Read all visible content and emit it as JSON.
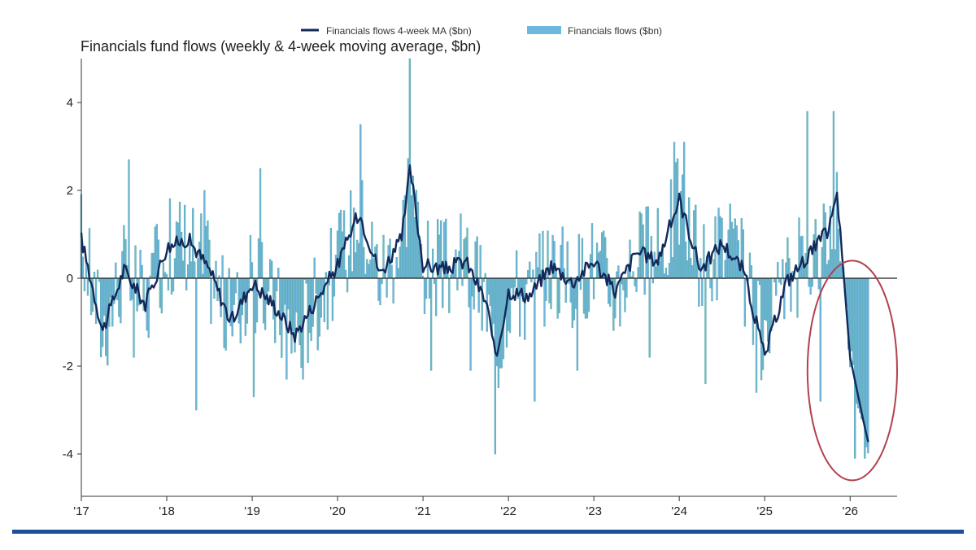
{
  "colors": {
    "ma_line": "#13295a",
    "bar_fill": "#6fb7de",
    "bar_outline": "#5aa8a8",
    "zero_line": "#1a1a1a",
    "axis": "#333333",
    "highlight_ellipse": "#b2414c",
    "footer_rule": "#1f4e9c"
  },
  "chart_data": {
    "type": "bar",
    "title": "Financials fund flows (weekly & 4-week moving average, $bn)",
    "legend": {
      "placement": "top-center",
      "items": [
        "Financials flows 4-week MA ($bn)",
        "Financials flows ($bn)"
      ]
    },
    "xlabel": "",
    "ylabel": "",
    "xlim": [
      2017.0,
      2026.55
    ],
    "ylim": [
      -4.9,
      5.0
    ],
    "x_tick_values": [
      2017,
      2018,
      2019,
      2020,
      2021,
      2022,
      2023,
      2024,
      2025,
      2026
    ],
    "x_tick_labels": [
      "'17",
      "'18",
      "'19",
      "'20",
      "'21",
      "'22",
      "'23",
      "'24",
      "'25",
      "'26"
    ],
    "y_tick_values": [
      4,
      2,
      0,
      -2,
      -4
    ],
    "y_tick_labels": [
      "4",
      "2",
      "0",
      "-2",
      "-4"
    ],
    "grid": false,
    "highlight": {
      "shape": "ellipse",
      "x_range": [
        2025.5,
        2026.55
      ],
      "y_range": [
        -4.6,
        0.4
      ]
    },
    "x_anchor": [
      2017.0,
      2017.25,
      2017.5,
      2017.75,
      2018.0,
      2018.25,
      2018.5,
      2018.75,
      2019.0,
      2019.25,
      2019.5,
      2019.75,
      2020.0,
      2020.25,
      2020.5,
      2020.75,
      2020.85,
      2021.0,
      2021.25,
      2021.5,
      2021.75,
      2021.85,
      2022.0,
      2022.25,
      2022.5,
      2022.75,
      2023.0,
      2023.25,
      2023.5,
      2023.75,
      2024.0,
      2024.25,
      2024.5,
      2024.75,
      2025.0,
      2025.25,
      2025.5,
      2025.75,
      2025.85,
      2026.0,
      2026.15,
      2026.22
    ],
    "ma_anchor": [
      0.9,
      -1.2,
      0.2,
      -0.6,
      0.7,
      0.9,
      0.2,
      -1.0,
      -0.1,
      -0.6,
      -1.3,
      -0.5,
      0.3,
      1.5,
      0.1,
      0.9,
      2.5,
      0.3,
      0.2,
      0.4,
      -0.6,
      -1.9,
      -0.3,
      -0.4,
      0.3,
      -0.1,
      0.4,
      -0.3,
      0.6,
      0.4,
      1.8,
      0.2,
      0.8,
      0.2,
      -1.8,
      -0.1,
      0.5,
      1.1,
      1.9,
      -1.8,
      -3.2,
      -3.8
    ],
    "series": [
      {
        "name": "Financials flows ($bn)",
        "kind": "bar",
        "note": "weekly values reconstructed from the 4-week MA plus deterministic noise"
      },
      {
        "name": "Financials flows 4-week MA ($bn)",
        "kind": "line"
      }
    ],
    "weekly_spikes": [
      [
        2017.55,
        2.7
      ],
      [
        2017.62,
        -1.8
      ],
      [
        2018.35,
        -3.0
      ],
      [
        2018.45,
        2.0
      ],
      [
        2019.02,
        -2.7
      ],
      [
        2019.1,
        2.5
      ],
      [
        2019.4,
        -2.3
      ],
      [
        2019.6,
        -2.3
      ],
      [
        2020.27,
        3.5
      ],
      [
        2020.85,
        5.0
      ],
      [
        2021.1,
        -2.1
      ],
      [
        2021.55,
        -2.1
      ],
      [
        2021.85,
        -4.0
      ],
      [
        2022.3,
        -2.8
      ],
      [
        2022.8,
        -2.1
      ],
      [
        2023.65,
        -1.8
      ],
      [
        2023.95,
        3.1
      ],
      [
        2024.05,
        3.1
      ],
      [
        2024.3,
        -2.4
      ],
      [
        2024.9,
        -2.6
      ],
      [
        2025.5,
        3.8
      ],
      [
        2025.65,
        -2.8
      ],
      [
        2025.8,
        3.8
      ],
      [
        2026.05,
        -4.1
      ],
      [
        2026.18,
        -4.1
      ]
    ]
  }
}
